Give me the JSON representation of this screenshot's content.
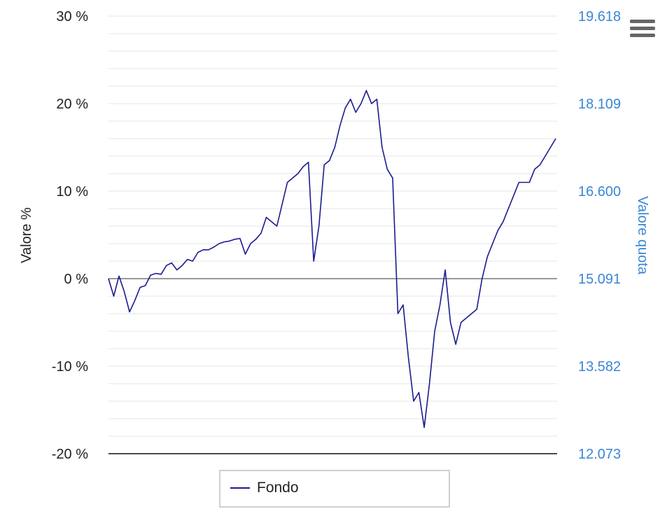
{
  "chart_data": {
    "type": "line",
    "xlabel": "",
    "ylabel": "Valore %",
    "ylabel_right": "Valore quota",
    "ylim": [
      -20,
      30
    ],
    "yticks": [
      "30 %",
      "20 %",
      "10 %",
      "0 %",
      "-10 %",
      "-20 %"
    ],
    "ylim_right": [
      12.073,
      19.618
    ],
    "yticks_right": [
      "19.618",
      "18.109",
      "16.600",
      "15.091",
      "13.582",
      "12.073"
    ],
    "grid": true,
    "legend_position": "bottom-center",
    "series": [
      {
        "name": "Fondo",
        "color": "#1b1b8f",
        "x": [
          0,
          1,
          2,
          3,
          4,
          5,
          6,
          7,
          8,
          9,
          10,
          11,
          12,
          13,
          14,
          15,
          16,
          17,
          18,
          19,
          20,
          21,
          22,
          23,
          24,
          25,
          26,
          27,
          28,
          29,
          30,
          31,
          32,
          33,
          34,
          35,
          36,
          37,
          38,
          39,
          40,
          41,
          42,
          43,
          44,
          45,
          46,
          47,
          48,
          49,
          50,
          51,
          52,
          53,
          54,
          55,
          56,
          57,
          58,
          59,
          60,
          61,
          62,
          63,
          64,
          65,
          66,
          67,
          68,
          69,
          70,
          71,
          72,
          73,
          74,
          75,
          76,
          77,
          78,
          79,
          80,
          81,
          82,
          83,
          84,
          85,
          86,
          87,
          88,
          89,
          90,
          91,
          92,
          93,
          94,
          95,
          96,
          97,
          98,
          99,
          100
        ],
        "values": [
          0.0,
          -2.0,
          0.3,
          -1.5,
          -3.8,
          -2.5,
          -1.0,
          -0.8,
          0.4,
          0.6,
          0.5,
          1.5,
          1.8,
          1.0,
          1.5,
          2.2,
          2.0,
          3.0,
          3.3,
          3.3,
          3.6,
          4.0,
          4.2,
          4.3,
          4.5,
          4.6,
          2.8,
          4.0,
          4.5,
          5.2,
          7.0,
          6.5,
          6.0,
          8.5,
          11.0,
          11.5,
          12.0,
          12.8,
          13.3,
          2.0,
          6.0,
          13.0,
          13.5,
          15.0,
          17.5,
          19.5,
          20.5,
          19.0,
          20.0,
          21.5,
          20.0,
          20.5,
          15.0,
          12.5,
          11.5,
          -4.0,
          -3.0,
          -9.0,
          -14.0,
          -13.0,
          -17.0,
          -12.0,
          -6.0,
          -3.0,
          1.0,
          -5.0,
          -7.5,
          -5.0,
          -4.5,
          -4.0,
          -3.5,
          0.0,
          2.5,
          4.0,
          5.5,
          6.5,
          8.0,
          9.5,
          11.0,
          11.0,
          11.0,
          12.5,
          13.0,
          14.0,
          15.0,
          16.0,
          null,
          null,
          null,
          null,
          null,
          null,
          null,
          null,
          null,
          null,
          null,
          null,
          null,
          null,
          null
        ]
      }
    ]
  }
}
